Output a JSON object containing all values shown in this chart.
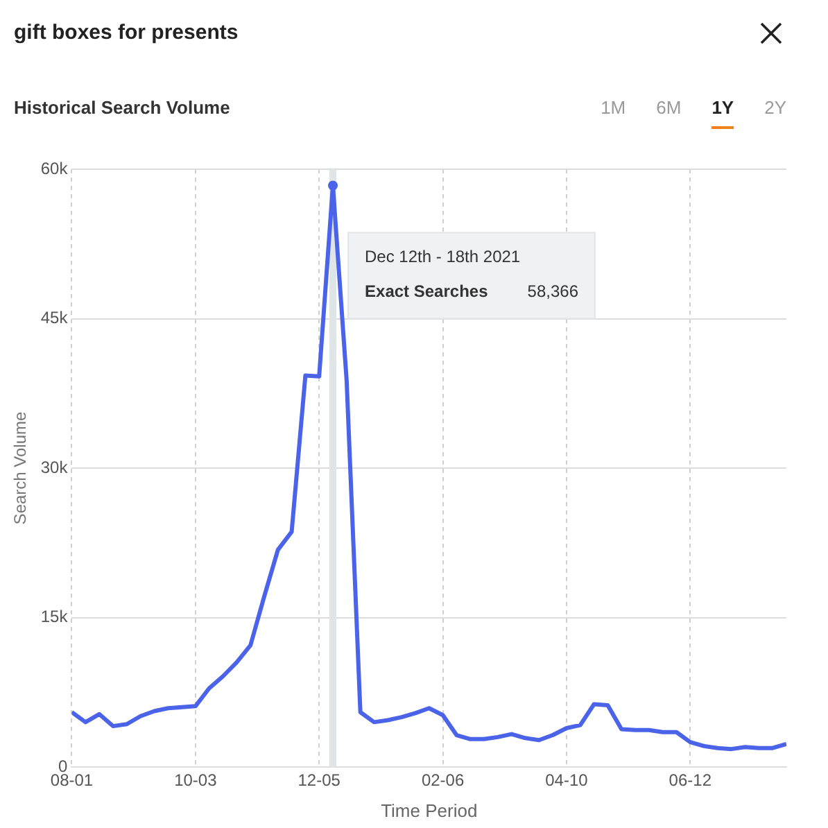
{
  "chart_data": {
    "type": "line",
    "title": "gift boxes for presents",
    "subtitle": "Historical Search Volume",
    "xlabel": "Time Period",
    "ylabel": "Search Volume",
    "x": [
      "2021-08-01",
      "2021-08-08",
      "2021-08-15",
      "2021-08-22",
      "2021-08-29",
      "2021-09-05",
      "2021-09-12",
      "2021-09-19",
      "2021-09-26",
      "2021-10-03",
      "2021-10-10",
      "2021-10-17",
      "2021-10-24",
      "2021-10-31",
      "2021-11-07",
      "2021-11-14",
      "2021-11-21",
      "2021-11-28",
      "2021-12-05",
      "2021-12-12",
      "2021-12-19",
      "2021-12-26",
      "2022-01-02",
      "2022-01-09",
      "2022-01-16",
      "2022-01-23",
      "2022-01-30",
      "2022-02-06",
      "2022-02-13",
      "2022-02-20",
      "2022-02-27",
      "2022-03-06",
      "2022-03-13",
      "2022-03-20",
      "2022-03-27",
      "2022-04-03",
      "2022-04-10",
      "2022-04-17",
      "2022-04-24",
      "2022-05-01",
      "2022-05-08",
      "2022-05-15",
      "2022-05-22",
      "2022-05-29",
      "2022-06-05",
      "2022-06-12",
      "2022-06-19",
      "2022-06-26",
      "2022-07-03",
      "2022-07-10",
      "2022-07-17",
      "2022-07-24",
      "2022-07-31"
    ],
    "series": [
      {
        "color": "#4a63e8",
        "values": [
          5500,
          4500,
          5300,
          4100,
          4300,
          5100,
          5600,
          5900,
          6000,
          6100,
          7900,
          9100,
          10500,
          12200,
          17100,
          21800,
          23600,
          39300,
          39200,
          58366,
          38800,
          5500,
          4500,
          4700,
          5000,
          5400,
          5900,
          5200,
          3200,
          2800,
          2800,
          3000,
          3300,
          2900,
          2700,
          3200,
          3900,
          4200,
          6300,
          6200,
          3800,
          3700,
          3700,
          3500,
          3500,
          2500,
          2100,
          1900,
          1800,
          2000,
          1900,
          1900,
          2300
        ]
      }
    ],
    "xlim": [
      "2021-08-01",
      "2022-07-31"
    ],
    "xticks": [
      {
        "value": "2021-08-01",
        "label": "08-01"
      },
      {
        "value": "2021-10-03",
        "label": "10-03"
      },
      {
        "value": "2021-12-05",
        "label": "12-05"
      },
      {
        "value": "2022-02-06",
        "label": "02-06"
      },
      {
        "value": "2022-04-10",
        "label": "04-10"
      },
      {
        "value": "2022-06-12",
        "label": "06-12"
      }
    ],
    "ylim": [
      0,
      60000
    ],
    "yticks": [
      0,
      {
        "value": 15000,
        "label": "15k"
      },
      {
        "value": 30000,
        "label": "30k"
      },
      {
        "value": 45000,
        "label": "45k"
      },
      {
        "value": 60000,
        "label": "60k"
      }
    ],
    "ref_lines": [
      {
        "axis": "x",
        "value": "2021-12-12",
        "color": "#dfe5e6"
      }
    ],
    "annotations": [
      "Dec 12th - 18th 2021",
      "Exact Searches",
      "58,366",
      "1M",
      "6M",
      "1Y",
      "2Y"
    ],
    "grid": true,
    "legend": false,
    "marker": "none",
    "line_style": "solid"
  }
}
